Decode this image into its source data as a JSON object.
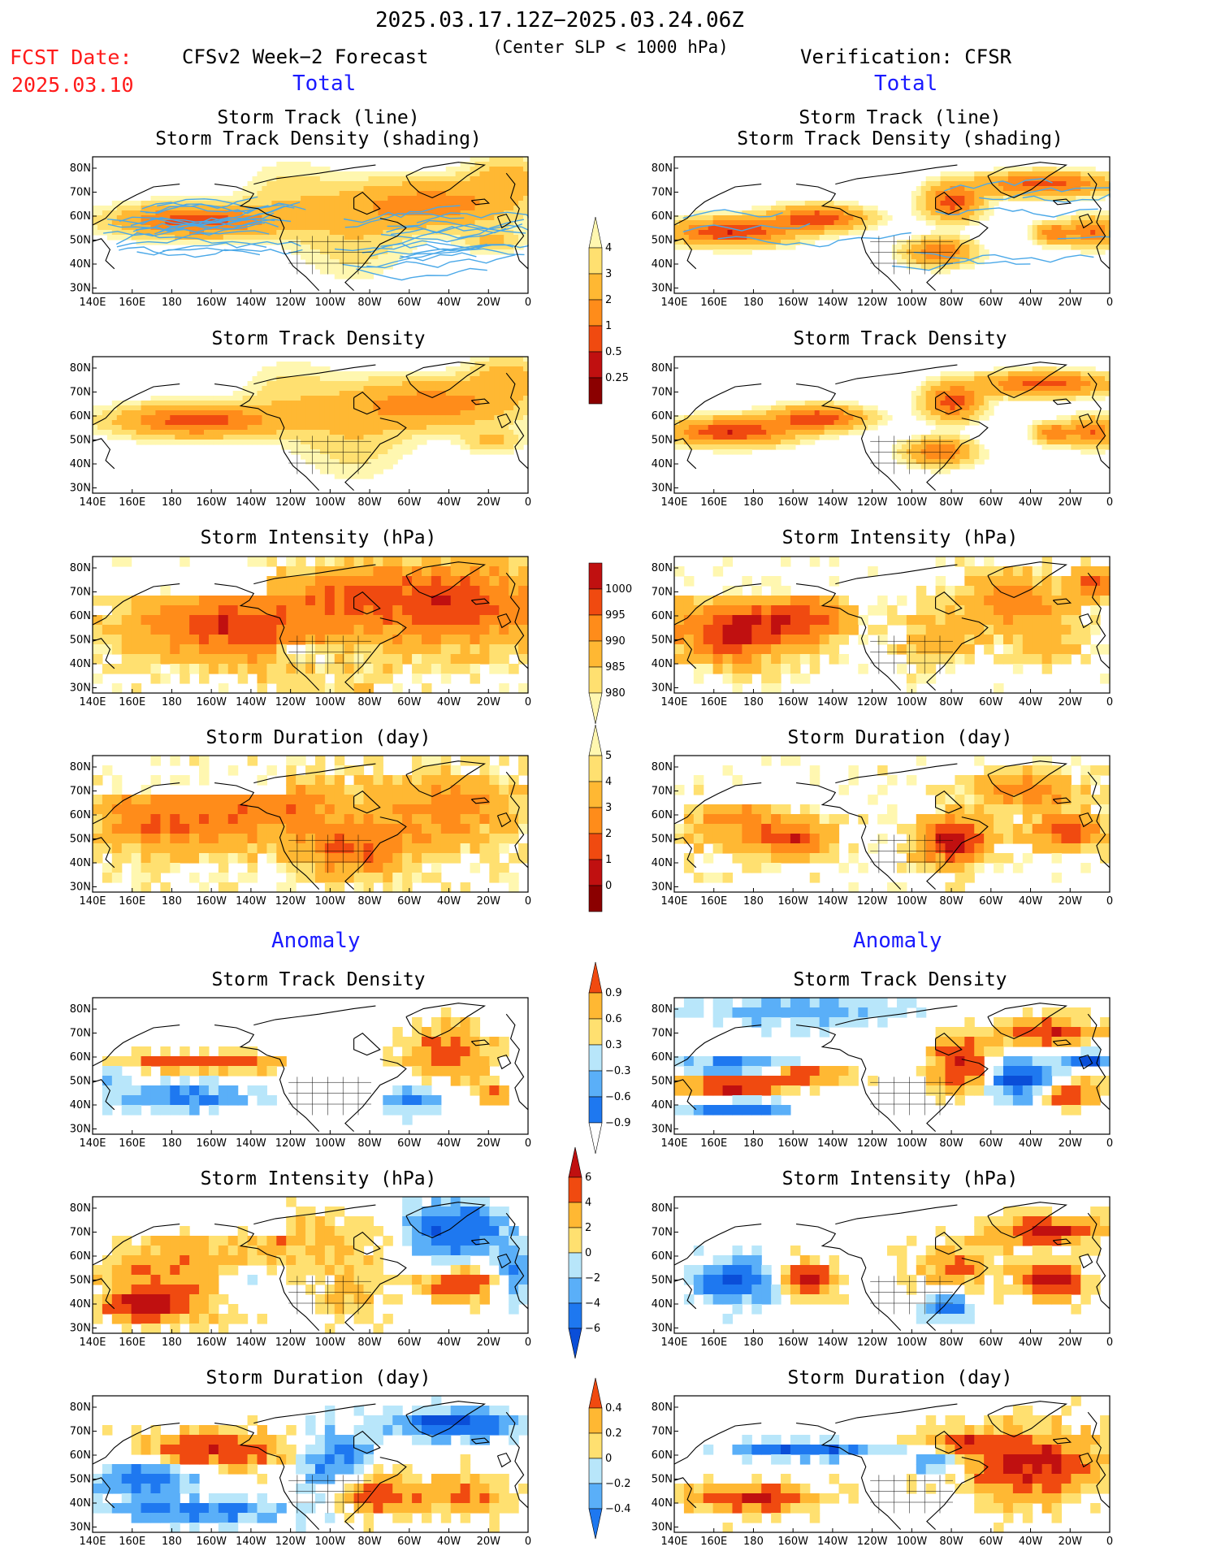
{
  "header": {
    "period": "2025.03.17.12Z−2025.03.24.06Z",
    "criterion": "(Center SLP < 1000 hPa)",
    "fcst_label": "FCST Date:",
    "fcst_date": "2025.03.10",
    "left_source": "CFSv2 Week−2 Forecast",
    "right_source": "Verification: CFSR",
    "total": "Total",
    "anomaly": "Anomaly"
  },
  "panels": {
    "track_line": "Storm Track (line)",
    "track_shading": "Storm Track Density (shading)",
    "density": "Storm Track Density",
    "intensity": "Storm Intensity (hPa)",
    "duration": "Storm Duration (day)"
  },
  "axes": {
    "lat_labels": [
      "80N",
      "70N",
      "60N",
      "50N",
      "40N",
      "30N"
    ],
    "lon_labels": [
      "140E",
      "160E",
      "180",
      "160W",
      "140W",
      "120W",
      "100W",
      "80W",
      "60W",
      "40W",
      "20W",
      "0"
    ]
  },
  "colorbars": {
    "density_total": [
      "0.25",
      "0.5",
      "1",
      "2",
      "3",
      "4"
    ],
    "intensity_total": [
      "1000",
      "995",
      "990",
      "985",
      "980"
    ],
    "duration_total": [
      "0",
      "1",
      "2",
      "3",
      "4",
      "5"
    ],
    "density_anom": [
      "−0.9",
      "−0.6",
      "−0.3",
      "0.3",
      "0.6",
      "0.9"
    ],
    "intensity_anom": [
      "−6",
      "−4",
      "−2",
      "0",
      "2",
      "4",
      "6"
    ],
    "duration_anom": [
      "−0.4",
      "−0.2",
      "0",
      "0.2",
      "0.4"
    ]
  },
  "colors": {
    "warm": [
      "#ffffff",
      "#fff7b0",
      "#ffe070",
      "#ffb833",
      "#ff8c1a",
      "#f04a10",
      "#c01010",
      "#8b0000"
    ],
    "cool": [
      "#0a4ed8",
      "#1e78f0",
      "#5aaff8",
      "#b8e6fa"
    ],
    "track": "#4aa8e8"
  }
}
